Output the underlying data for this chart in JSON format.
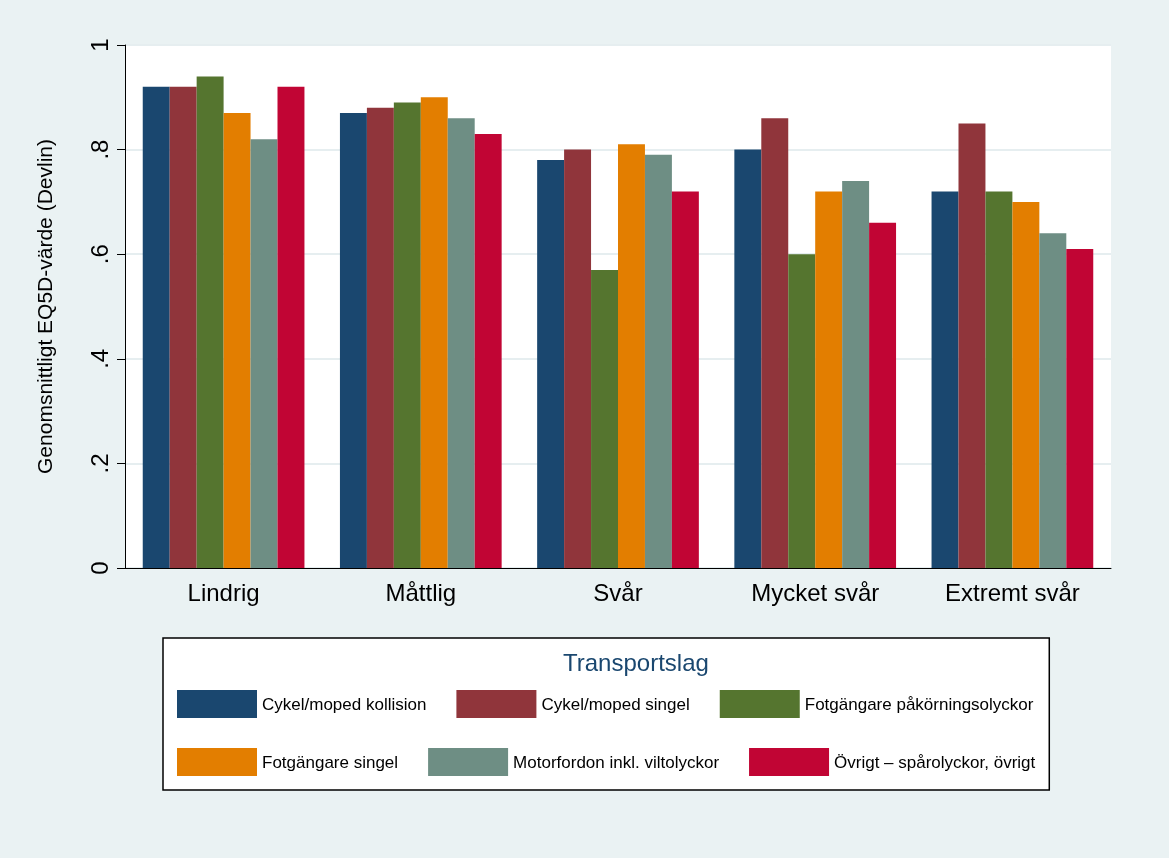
{
  "chart_data": {
    "type": "bar",
    "ylabel": "Genomsnittligt EQ5D-värde (Devlin)",
    "legend_title": "Transportslag",
    "legend": "bottom",
    "grid": "y",
    "categories": [
      "Lindrig",
      "Måttlig",
      "Svår",
      "Mycket svår",
      "Extremt svår"
    ],
    "ylim": [
      0,
      1
    ],
    "yticks": [
      0,
      {
        "value": 0.2,
        "label": ".2"
      },
      {
        "value": 0.4,
        "label": ".4"
      },
      {
        "value": 0.6,
        "label": ".6"
      },
      {
        "value": 0.8,
        "label": ".8"
      },
      1
    ],
    "series": [
      {
        "name": "Cykel/moped kollision",
        "color": "#1a476f",
        "values": [
          0.92,
          0.87,
          0.78,
          0.8,
          0.72
        ]
      },
      {
        "name": "Cykel/moped singel",
        "color": "#90353b",
        "values": [
          0.92,
          0.88,
          0.8,
          0.86,
          0.85
        ]
      },
      {
        "name": "Fotgängare påkörningsolyckor",
        "color": "#55752f",
        "values": [
          0.94,
          0.89,
          0.57,
          0.6,
          0.72
        ]
      },
      {
        "name": "Fotgängare singel",
        "color": "#e37e00",
        "values": [
          0.87,
          0.9,
          0.81,
          0.72,
          0.7
        ]
      },
      {
        "name": "Motorfordon inkl. viltolyckor",
        "color": "#6e8e84",
        "values": [
          0.82,
          0.86,
          0.79,
          0.74,
          0.64
        ]
      },
      {
        "name": "Övrigt – spårolyckor, övrigt",
        "color": "#c10534",
        "values": [
          0.92,
          0.83,
          0.72,
          0.66,
          0.61
        ]
      }
    ]
  }
}
